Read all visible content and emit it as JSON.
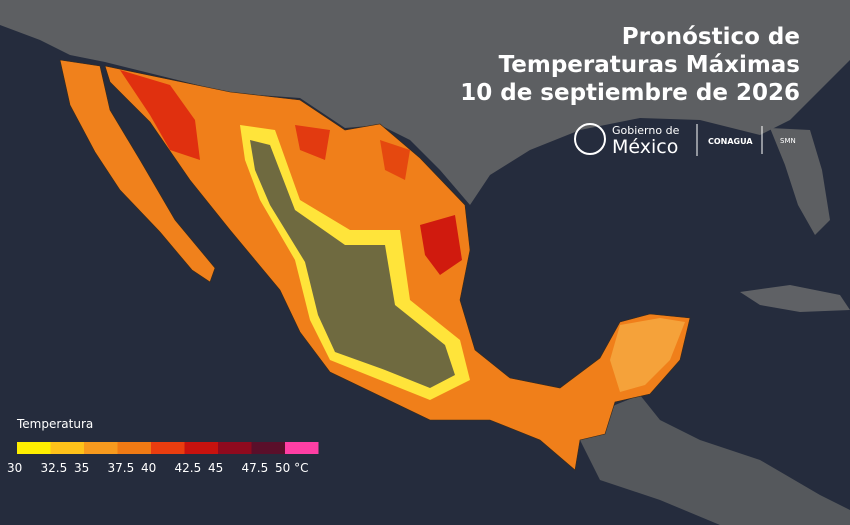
{
  "header": {
    "title_lines": [
      "Pronóstico de",
      "Temperaturas Máximas",
      "10 de septiembre de 2026"
    ]
  },
  "logos": {
    "government_line1": "Gobierno de",
    "government_line2": "México",
    "agency": "CONAGUA",
    "service": "SMN"
  },
  "legend": {
    "title": "Temperatura",
    "ticks": [
      30,
      32.5,
      35,
      37.5,
      40,
      42.5,
      45,
      47.5,
      {
        "value": 50,
        "label": "50 °C"
      }
    ],
    "colors": [
      "#ffef00",
      "#ffc21a",
      "#f79a1e",
      "#f07a14",
      "#ea3d0f",
      "#c8120e",
      "#8f0a1e",
      "#5a0f2a",
      "#ff3fa4"
    ]
  }
}
